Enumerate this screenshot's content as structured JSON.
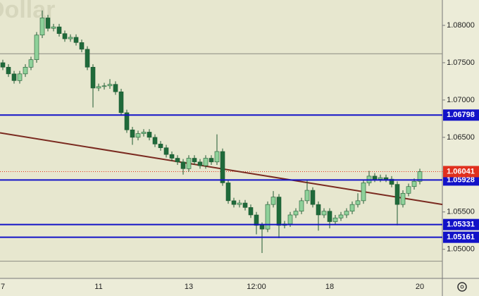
{
  "chart_data": {
    "type": "candlestick",
    "title": "Dollar",
    "categories": [
      "7",
      null,
      null,
      null,
      null,
      null,
      null,
      null,
      null,
      null,
      null,
      null,
      null,
      null,
      null,
      null,
      null,
      "11",
      null,
      null,
      null,
      null,
      null,
      null,
      null,
      null,
      null,
      null,
      null,
      null,
      null,
      null,
      null,
      "13",
      null,
      null,
      null,
      null,
      null,
      null,
      null,
      null,
      null,
      null,
      null,
      "12:00",
      null,
      null,
      null,
      null,
      null,
      null,
      null,
      null,
      null,
      null,
      null,
      null,
      "18",
      null,
      null,
      null,
      null,
      null,
      null,
      null,
      null,
      null,
      null,
      null,
      null,
      null,
      null,
      null,
      "20"
    ],
    "open": [
      1.075,
      1.0744,
      1.0735,
      1.0726,
      1.0735,
      1.0744,
      1.0754,
      1.0787,
      1.081,
      1.0796,
      1.0798,
      1.0789,
      1.0782,
      1.0784,
      1.0777,
      1.0768,
      1.0744,
      1.0716,
      1.0718,
      1.0719,
      1.0721,
      1.0711,
      1.0683,
      1.066,
      1.065,
      1.0655,
      1.0657,
      1.065,
      1.0641,
      1.0636,
      1.0627,
      1.0622,
      1.0617,
      1.0608,
      1.0622,
      1.0617,
      1.0612,
      1.0622,
      1.0617,
      1.0631,
      1.0589,
      1.0565,
      1.056,
      1.0562,
      1.0556,
      1.0546,
      1.0532,
      1.0527,
      1.056,
      1.057,
      1.0532,
      1.0534,
      1.0546,
      1.0551,
      1.0565,
      1.0579,
      1.056,
      1.0546,
      1.0551,
      1.0537,
      1.0542,
      1.0546,
      1.0551,
      1.056,
      1.0565,
      1.0589,
      1.0598,
      1.0594,
      1.0596,
      1.0594,
      1.0587,
      1.056,
      1.0575,
      1.0584,
      1.0591
    ],
    "high": [
      1.0754,
      1.0748,
      1.0739,
      1.0739,
      1.0748,
      1.0758,
      1.0791,
      1.082,
      1.0814,
      1.0802,
      1.0802,
      1.0793,
      1.0788,
      1.0788,
      1.0781,
      1.0772,
      1.0748,
      1.0722,
      1.0723,
      1.0728,
      1.0725,
      1.0715,
      1.0687,
      1.0664,
      1.0659,
      1.0661,
      1.0661,
      1.0654,
      1.0645,
      1.064,
      1.0631,
      1.0626,
      1.0621,
      1.0626,
      1.0626,
      1.0621,
      1.0626,
      1.0626,
      1.0654,
      1.0635,
      1.0593,
      1.0569,
      1.0566,
      1.0566,
      1.056,
      1.055,
      1.0536,
      1.0564,
      1.0578,
      1.0574,
      1.0538,
      1.055,
      1.0555,
      1.0569,
      1.0592,
      1.0583,
      1.0564,
      1.0555,
      1.0555,
      1.0546,
      1.055,
      1.0555,
      1.0564,
      1.0575,
      1.0593,
      1.0605,
      1.0602,
      1.06,
      1.06,
      1.0598,
      1.0591,
      1.0579,
      1.0588,
      1.0595,
      1.0608
    ],
    "low": [
      1.074,
      1.0731,
      1.0722,
      1.0722,
      1.0731,
      1.074,
      1.075,
      1.0783,
      1.0792,
      1.0792,
      1.0785,
      1.0778,
      1.0778,
      1.0773,
      1.0764,
      1.074,
      1.069,
      1.0712,
      1.0714,
      1.0715,
      1.0707,
      1.0679,
      1.0656,
      1.064,
      1.0646,
      1.0651,
      1.0646,
      1.0637,
      1.0632,
      1.0623,
      1.0618,
      1.0613,
      1.06,
      1.0604,
      1.0613,
      1.0608,
      1.0608,
      1.0613,
      1.0613,
      1.0585,
      1.0561,
      1.0556,
      1.0556,
      1.0552,
      1.0542,
      1.052,
      1.0495,
      1.0523,
      1.0556,
      1.0515,
      1.0528,
      1.053,
      1.0542,
      1.0547,
      1.0561,
      1.0556,
      1.0525,
      1.0542,
      1.0528,
      1.0533,
      1.0538,
      1.0542,
      1.0547,
      1.0556,
      1.0561,
      1.0585,
      1.059,
      1.059,
      1.059,
      1.0583,
      1.0532,
      1.0556,
      1.0571,
      1.058,
      1.0587
    ],
    "close": [
      1.0744,
      1.0735,
      1.0726,
      1.0735,
      1.0744,
      1.0754,
      1.0787,
      1.081,
      1.0796,
      1.0798,
      1.0789,
      1.0782,
      1.0784,
      1.0777,
      1.0768,
      1.0744,
      1.0716,
      1.0718,
      1.0719,
      1.0721,
      1.0711,
      1.0683,
      1.066,
      1.065,
      1.0655,
      1.0657,
      1.065,
      1.0641,
      1.0636,
      1.0627,
      1.0622,
      1.0617,
      1.0608,
      1.0622,
      1.0617,
      1.0612,
      1.0622,
      1.0617,
      1.0631,
      1.0589,
      1.0565,
      1.056,
      1.0562,
      1.0556,
      1.0546,
      1.0532,
      1.0527,
      1.056,
      1.057,
      1.0532,
      1.0534,
      1.0546,
      1.0551,
      1.0565,
      1.0579,
      1.056,
      1.0546,
      1.0551,
      1.0537,
      1.0542,
      1.0546,
      1.0551,
      1.056,
      1.0565,
      1.0589,
      1.0598,
      1.0594,
      1.0596,
      1.0594,
      1.0587,
      1.056,
      1.0575,
      1.0584,
      1.0591,
      1.0604
    ],
    "up_color": "#8fd19a",
    "down_color": "#1f6a3a",
    "ylim": [
      1.0461,
      1.0834
    ],
    "yticks": [
      {
        "value": 1.08,
        "label": "1.08000"
      },
      {
        "value": 1.075,
        "label": "1.07500"
      },
      {
        "value": 1.07,
        "label": "1.07000"
      },
      {
        "value": 1.065,
        "label": "1.06500"
      },
      {
        "value": 1.055,
        "label": "1.05500"
      },
      {
        "value": 1.05,
        "label": "1.05000"
      }
    ],
    "grid": false,
    "levels": [
      {
        "value": 1.06798,
        "label": "1.06798",
        "color": "#1212c8"
      },
      {
        "value": 1.05928,
        "label": "1.05928",
        "color": "#1212c8"
      },
      {
        "value": 1.05331,
        "label": "1.05331",
        "color": "#1212c8"
      },
      {
        "value": 1.05161,
        "label": "1.05161",
        "color": "#1212c8"
      }
    ],
    "gray_lines": [
      1.0762,
      1.0484
    ],
    "current_price": {
      "value": 1.06041,
      "label": "1.06041",
      "color": "#e0301e"
    },
    "trendline": {
      "x": [
        -0.5,
        78
      ],
      "y": [
        1.0656,
        1.056
      ],
      "color": "#7a2a20"
    }
  }
}
